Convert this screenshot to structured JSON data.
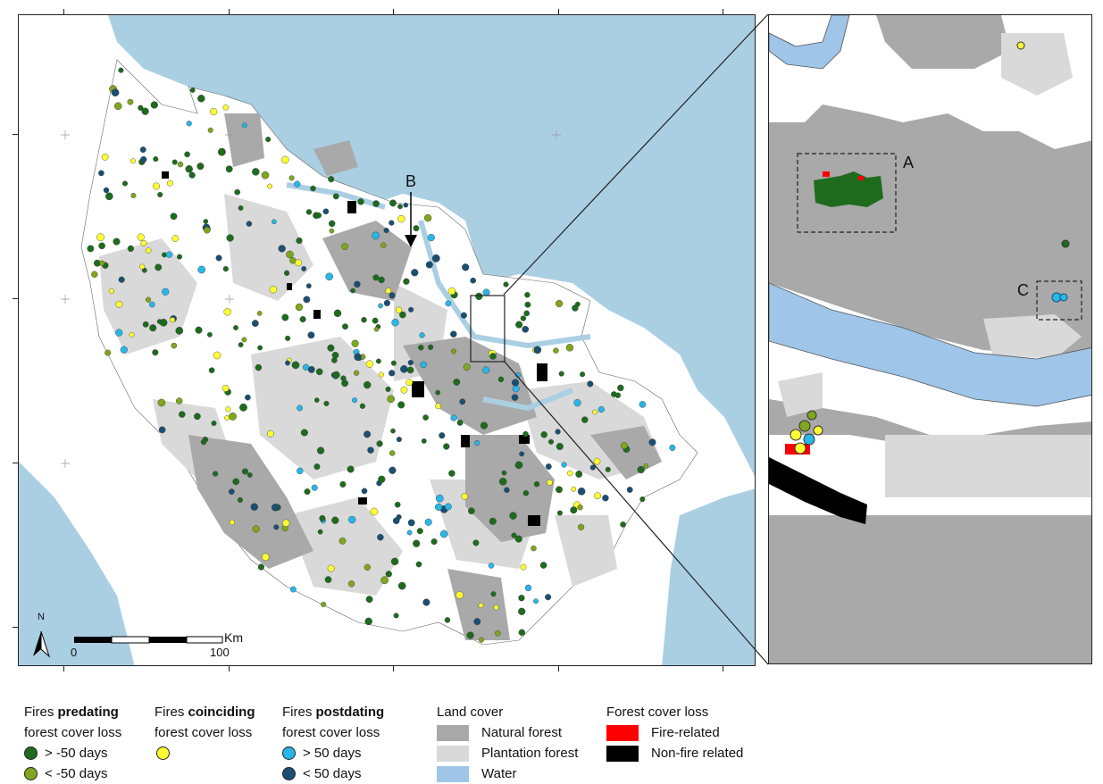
{
  "colors": {
    "sea": "#aacfe3",
    "natural_forest": "#a9a9a9",
    "plantation_forest": "#d9d9d9",
    "water": "#9fc5e8",
    "fire_related": "#ff0000",
    "non_fire_related": "#000000",
    "predating_gt": "#1e6b1e",
    "predating_lt": "#7fa61e",
    "coinciding": "#ffff33",
    "postdating_gt": "#29b6e8",
    "postdating_lt": "#1b4f72"
  },
  "map": {
    "north_label": "N",
    "scale_unit": "Km",
    "scale_start": "0",
    "scale_end": "100",
    "marker_b": "B",
    "inset_a": "A",
    "inset_c": "C"
  },
  "legend": {
    "predating": {
      "prefix": "Fires ",
      "bold": "predating",
      "line2": "forest cover loss",
      "item1": "> -50 days",
      "item2": "< -50 days"
    },
    "coinciding": {
      "prefix": "Fires ",
      "bold": "coinciding",
      "line2": "forest cover loss"
    },
    "postdating": {
      "prefix": "Fires ",
      "bold": "postdating",
      "line2": "forest cover loss",
      "item1": "> 50 days",
      "item2": "< 50 days"
    },
    "land_cover": {
      "title": "Land cover",
      "item1": "Natural forest",
      "item2": "Plantation forest",
      "item3": "Water"
    },
    "forest_loss": {
      "title": "Forest cover loss",
      "item1": "Fire-related",
      "item2": "Non-fire related"
    }
  }
}
